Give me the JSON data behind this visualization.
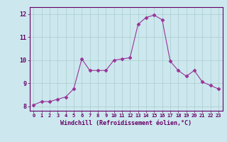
{
  "x": [
    0,
    1,
    2,
    3,
    4,
    5,
    6,
    7,
    8,
    9,
    10,
    11,
    12,
    13,
    14,
    15,
    16,
    17,
    18,
    19,
    20,
    21,
    22,
    23
  ],
  "y": [
    8.05,
    8.2,
    8.2,
    8.3,
    8.4,
    8.75,
    10.05,
    9.55,
    9.55,
    9.55,
    10.0,
    10.05,
    10.1,
    11.55,
    11.85,
    11.95,
    11.75,
    9.95,
    9.55,
    9.3,
    9.55,
    9.05,
    8.9,
    8.75
  ],
  "line_color": "#993399",
  "marker": "D",
  "markersize": 2.5,
  "bg_color": "#cce8ee",
  "grid_color": "#aacccc",
  "xlabel": "Windchill (Refroidissement éolien,°C)",
  "xlabel_color": "#660066",
  "tick_color": "#660066",
  "axis_color": "#660066",
  "ylim": [
    7.8,
    12.3
  ],
  "xlim": [
    -0.5,
    23.5
  ],
  "yticks": [
    8,
    9,
    10,
    11,
    12
  ],
  "xticks": [
    0,
    1,
    2,
    3,
    4,
    5,
    6,
    7,
    8,
    9,
    10,
    11,
    12,
    13,
    14,
    15,
    16,
    17,
    18,
    19,
    20,
    21,
    22,
    23
  ]
}
